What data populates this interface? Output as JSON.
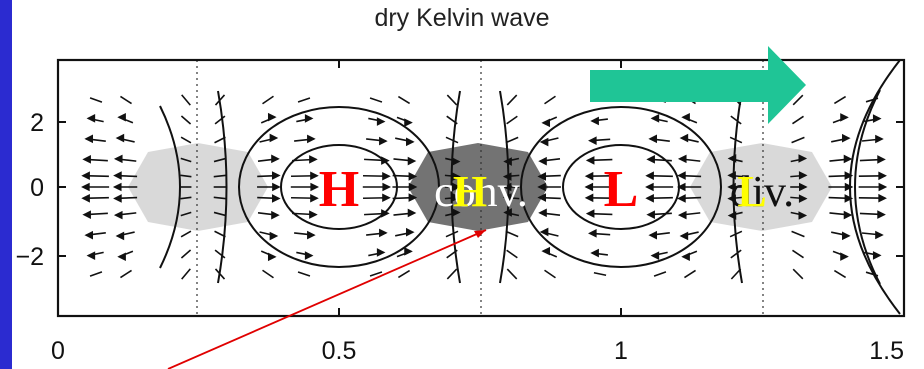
{
  "title": "dry Kelvin wave",
  "labels": {
    "high_left": "H",
    "conv": "conv.",
    "high_small": "H",
    "low_mid": "L",
    "div": "div.",
    "low_small": "L"
  },
  "colors": {
    "background": "#2b2bd0",
    "arrow": "#1fc596",
    "high_low_text": "#ff0000",
    "small_text": "#ffff00",
    "div_region": "#d9d9d9",
    "conv_region": "#737373",
    "pointer_line": "#e00000"
  },
  "chart_data": {
    "type": "diagram",
    "title": "dry Kelvin wave",
    "x_ticks": [
      "0",
      "0.5",
      "1",
      "1.5"
    ],
    "y_ticks": [
      "2",
      "0",
      "−2"
    ],
    "xlim": [
      0,
      1.5
    ],
    "ylim": [
      -3.5,
      3.5
    ],
    "propagation_arrow": "eastward"
  }
}
